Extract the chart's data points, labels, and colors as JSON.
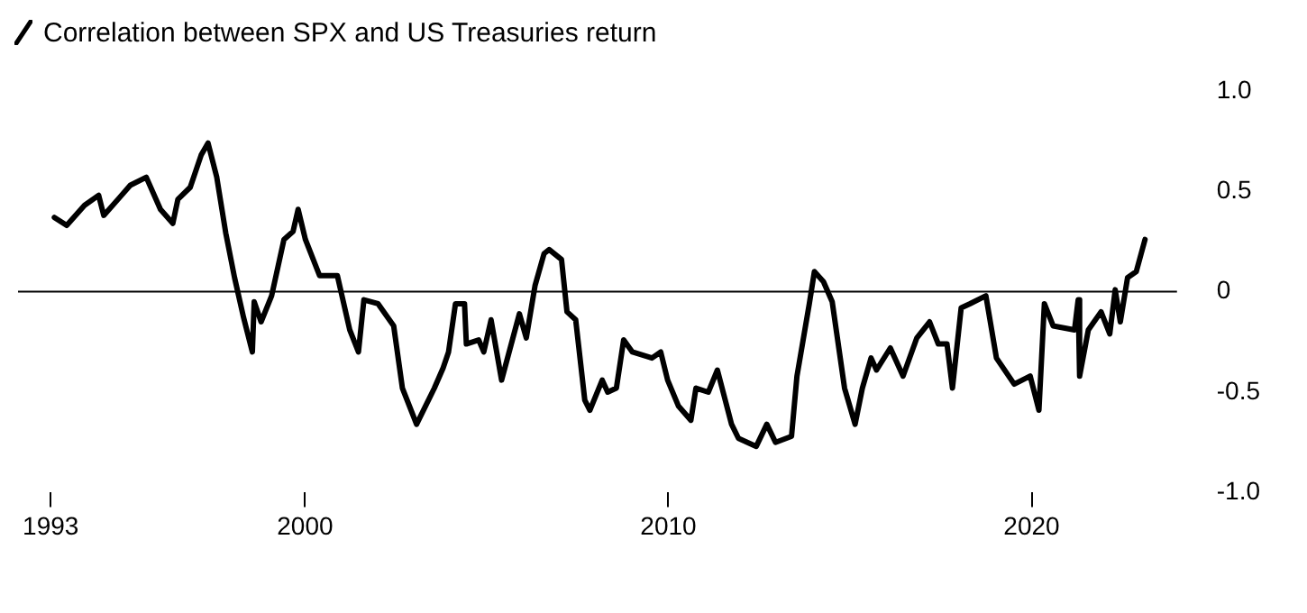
{
  "chart_data": {
    "type": "line",
    "title": "Correlation between SPX and US Treasuries return",
    "x": [
      1993.1,
      1993.44,
      1993.93,
      1994.32,
      1994.46,
      1994.9,
      1995.19,
      1995.63,
      1996.02,
      1996.36,
      1996.5,
      1996.84,
      1997.14,
      1997.33,
      1997.57,
      1997.82,
      1998.06,
      1998.31,
      1998.55,
      1998.6,
      1998.79,
      1999.08,
      1999.42,
      1999.67,
      1999.81,
      2000.01,
      2000.4,
      2000.89,
      2001.23,
      2001.47,
      2001.62,
      2002.01,
      2002.44,
      2002.68,
      2003.07,
      2003.56,
      2003.8,
      2003.95,
      2004.14,
      2004.39,
      2004.44,
      2004.78,
      2004.92,
      2005.12,
      2005.41,
      2005.9,
      2006.09,
      2006.33,
      2006.58,
      2006.72,
      2007.06,
      2007.21,
      2007.45,
      2007.7,
      2007.84,
      2008.18,
      2008.33,
      2008.57,
      2008.77,
      2009.01,
      2009.55,
      2009.79,
      2009.98,
      2010.28,
      2010.62,
      2010.76,
      2011.1,
      2011.35,
      2011.74,
      2011.93,
      2012.42,
      2012.71,
      2012.95,
      2013.39,
      2013.54,
      2013.88,
      2014.02,
      2014.27,
      2014.51,
      2014.85,
      2015.14,
      2015.34,
      2015.58,
      2015.73,
      2016.11,
      2016.46,
      2016.84,
      2017.19,
      2017.43,
      2017.67,
      2017.82,
      2018.06,
      2018.3,
      2018.74,
      2019.03,
      2019.52,
      2019.96,
      2020.2,
      2020.35,
      2020.59,
      2021.18,
      2021.28,
      2021.32,
      2021.56,
      2021.91,
      2022.15,
      2022.3,
      2022.44,
      2022.64,
      2022.88,
      2023.12
    ],
    "series": [
      {
        "color": "#000000",
        "values": [
          0.37,
          0.33,
          0.43,
          0.48,
          0.38,
          0.47,
          0.53,
          0.57,
          0.41,
          0.34,
          0.46,
          0.52,
          0.68,
          0.74,
          0.57,
          0.29,
          0.07,
          -0.13,
          -0.3,
          -0.05,
          -0.15,
          -0.02,
          0.26,
          0.3,
          0.41,
          0.26,
          0.08,
          0.08,
          -0.19,
          -0.3,
          -0.04,
          -0.06,
          -0.17,
          -0.48,
          -0.66,
          -0.48,
          -0.38,
          -0.3,
          -0.06,
          -0.06,
          -0.26,
          -0.24,
          -0.3,
          -0.14,
          -0.44,
          -0.11,
          -0.23,
          0.03,
          0.19,
          0.21,
          0.16,
          -0.1,
          -0.14,
          -0.54,
          -0.59,
          -0.44,
          -0.5,
          -0.48,
          -0.24,
          -0.3,
          -0.33,
          -0.3,
          -0.44,
          -0.57,
          -0.64,
          -0.48,
          -0.5,
          -0.39,
          -0.66,
          -0.73,
          -0.77,
          -0.66,
          -0.75,
          -0.72,
          -0.42,
          -0.06,
          0.1,
          0.05,
          -0.05,
          -0.48,
          -0.66,
          -0.48,
          -0.33,
          -0.39,
          -0.28,
          -0.42,
          -0.23,
          -0.15,
          -0.26,
          -0.26,
          -0.48,
          -0.08,
          -0.06,
          -0.02,
          -0.33,
          -0.46,
          -0.42,
          -0.59,
          -0.06,
          -0.17,
          -0.19,
          -0.04,
          -0.42,
          -0.19,
          -0.1,
          -0.21,
          0.01,
          -0.15,
          0.07,
          0.1,
          0.26
        ]
      }
    ],
    "xlim": [
      1992.1,
      2024.0
    ],
    "xticks": [
      1993,
      2000,
      2010,
      2020
    ],
    "ylim": [
      -1,
      1
    ],
    "yticks": [
      {
        "value": 1,
        "label": "1.0"
      },
      0.5,
      0,
      -0.5,
      {
        "value": -1,
        "label": "-1.0"
      }
    ],
    "ref_lines": [
      {
        "axis": "y",
        "value": 0,
        "color": "#000000"
      }
    ],
    "marker": "none",
    "line_style": "solid",
    "legend": false,
    "grid": false
  }
}
